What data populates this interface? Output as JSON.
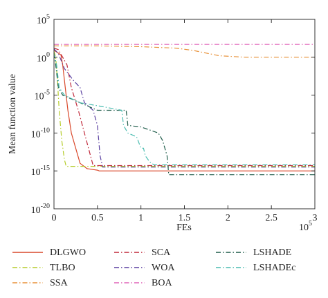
{
  "chart_data": {
    "type": "line",
    "xlabel": "FEs",
    "ylabel": "Mean function value",
    "x_multiplier_label": {
      "base": "10",
      "exp": "5"
    },
    "xlim": [
      0,
      3
    ],
    "ylim_log10": [
      -20,
      5
    ],
    "y_scale": "log",
    "x_ticks": [
      "0",
      "0.5",
      "1",
      "1.5",
      "2",
      "2.5",
      "3"
    ],
    "y_ticks": [
      {
        "base": "10",
        "exp": "5",
        "value": 5
      },
      {
        "base": "10",
        "exp": "0",
        "value": 0
      },
      {
        "base": "10",
        "exp": "-5",
        "value": -5
      },
      {
        "base": "10",
        "exp": "-10",
        "value": -10
      },
      {
        "base": "10",
        "exp": "-15",
        "value": -15
      },
      {
        "base": "10",
        "exp": "-20",
        "value": -20
      }
    ],
    "grid": false,
    "legend_position": "bottom",
    "series": [
      {
        "name": "DLGWO",
        "color": "#d9482b",
        "dash": "solid",
        "points": [
          [
            0,
            0.9
          ],
          [
            0.03,
            0.7
          ],
          [
            0.08,
            0.3
          ],
          [
            0.1,
            -1
          ],
          [
            0.13,
            -4
          ],
          [
            0.16,
            -7
          ],
          [
            0.2,
            -10
          ],
          [
            0.25,
            -12
          ],
          [
            0.3,
            -14
          ],
          [
            0.38,
            -14.7
          ],
          [
            0.5,
            -14.9
          ],
          [
            0.52,
            -15
          ],
          [
            1.3,
            -15
          ],
          [
            3,
            -15
          ]
        ]
      },
      {
        "name": "TLBO",
        "color": "#b5cc2a",
        "dash": "dashdot",
        "points": [
          [
            0,
            0.8
          ],
          [
            0.02,
            0
          ],
          [
            0.04,
            -3
          ],
          [
            0.06,
            -7
          ],
          [
            0.09,
            -11
          ],
          [
            0.12,
            -13.5
          ],
          [
            0.14,
            -14.4
          ],
          [
            0.3,
            -14.4
          ],
          [
            0.5,
            -14.4
          ],
          [
            3,
            -14.4
          ]
        ]
      },
      {
        "name": "SSA",
        "color": "#e8923a",
        "dash": "dashdot",
        "points": [
          [
            0,
            1.5
          ],
          [
            0.5,
            1.5
          ],
          [
            1,
            1.4
          ],
          [
            1.4,
            1.2
          ],
          [
            1.6,
            0.9
          ],
          [
            1.9,
            0.2
          ],
          [
            2.2,
            0
          ],
          [
            2.5,
            0
          ],
          [
            3,
            0
          ]
        ]
      },
      {
        "name": "SCA",
        "color": "#c0283a",
        "dash": "dashdot",
        "points": [
          [
            0,
            1.2
          ],
          [
            0.05,
            1.0
          ],
          [
            0.1,
            0
          ],
          [
            0.15,
            -1
          ],
          [
            0.2,
            -4
          ],
          [
            0.28,
            -7
          ],
          [
            0.35,
            -10
          ],
          [
            0.42,
            -13
          ],
          [
            0.45,
            -14.3
          ],
          [
            0.6,
            -14.3
          ],
          [
            3,
            -14.3
          ]
        ]
      },
      {
        "name": "WOA",
        "color": "#5a3fa0",
        "dash": "dashdot",
        "points": [
          [
            0,
            1.1
          ],
          [
            0.05,
            0.5
          ],
          [
            0.12,
            -1.5
          ],
          [
            0.22,
            -3
          ],
          [
            0.3,
            -4
          ],
          [
            0.35,
            -6
          ],
          [
            0.45,
            -7
          ],
          [
            0.5,
            -9
          ],
          [
            0.53,
            -13
          ],
          [
            0.56,
            -14.5
          ],
          [
            0.7,
            -14.5
          ],
          [
            3,
            -14.5
          ]
        ]
      },
      {
        "name": "BOA",
        "color": "#e064b8",
        "dash": "dashdot",
        "points": [
          [
            0,
            1.7
          ],
          [
            0.5,
            1.7
          ],
          [
            1,
            1.7
          ],
          [
            1.5,
            1.7
          ],
          [
            2,
            1.7
          ],
          [
            2.5,
            1.7
          ],
          [
            3,
            1.7
          ]
        ]
      },
      {
        "name": "LSHADE",
        "color": "#1f5c4a",
        "dash": "dashdot",
        "points": [
          [
            0,
            0.5
          ],
          [
            0.02,
            -1
          ],
          [
            0.05,
            -4
          ],
          [
            0.1,
            -5
          ],
          [
            0.3,
            -6
          ],
          [
            0.5,
            -7
          ],
          [
            0.6,
            -7
          ],
          [
            0.83,
            -7
          ],
          [
            0.85,
            -9
          ],
          [
            1,
            -9.2
          ],
          [
            1.2,
            -10
          ],
          [
            1.25,
            -11
          ],
          [
            1.3,
            -13
          ],
          [
            1.32,
            -15.5
          ],
          [
            1.4,
            -15.5
          ],
          [
            3,
            -15.5
          ]
        ]
      },
      {
        "name": "LSHADEc",
        "color": "#49bcb0",
        "dash": "dashdot",
        "points": [
          [
            0,
            0.5
          ],
          [
            0.03,
            -1
          ],
          [
            0.06,
            -4
          ],
          [
            0.12,
            -5
          ],
          [
            0.3,
            -6
          ],
          [
            0.55,
            -6.5
          ],
          [
            0.78,
            -7
          ],
          [
            0.8,
            -9
          ],
          [
            0.85,
            -10
          ],
          [
            0.95,
            -10.5
          ],
          [
            1,
            -12
          ],
          [
            1.03,
            -12
          ],
          [
            1.05,
            -13
          ],
          [
            1.1,
            -13.8
          ],
          [
            1.15,
            -14.2
          ],
          [
            1.3,
            -14.2
          ],
          [
            3,
            -14.2
          ]
        ]
      }
    ]
  }
}
